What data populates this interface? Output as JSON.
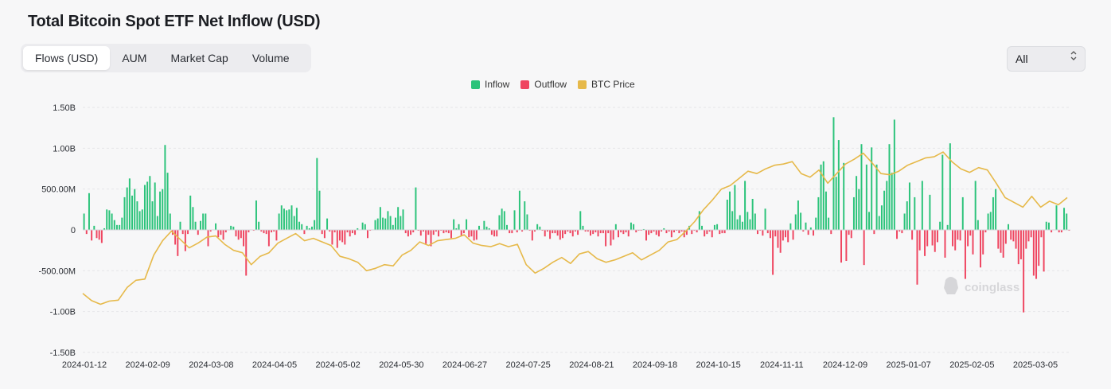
{
  "title": "Total Bitcoin Spot ETF Net Inflow (USD)",
  "tabs": [
    {
      "label": "Flows (USD)",
      "active": true
    },
    {
      "label": "AUM",
      "active": false
    },
    {
      "label": "Market Cap",
      "active": false
    },
    {
      "label": "Volume",
      "active": false
    }
  ],
  "range_select": {
    "value": "All",
    "icon": "chevron-updown-icon"
  },
  "watermark": "coinglass",
  "colors": {
    "inflow": "#2bc37a",
    "outflow": "#ef4560",
    "price": "#e6b94a",
    "grid": "#e6e6e9"
  },
  "chart_data": {
    "type": "bar",
    "title": "Total Bitcoin Spot ETF Net Inflow (USD)",
    "legend": [
      "Inflow",
      "Outflow",
      "BTC Price"
    ],
    "legend_position": "top-center",
    "grid": true,
    "y_ticks": [
      "1.50B",
      "1.00B",
      "500.00M",
      "0",
      "-500.00M",
      "-1.00B",
      "-1.50B"
    ],
    "ylim": [
      -1500000000,
      1500000000
    ],
    "x_ticks": [
      "2024-01-12",
      "2024-02-09",
      "2024-03-08",
      "2024-04-05",
      "2024-05-02",
      "2024-05-30",
      "2024-06-27",
      "2024-07-25",
      "2024-08-21",
      "2024-09-18",
      "2024-10-15",
      "2024-11-11",
      "2024-12-09",
      "2025-01-07",
      "2025-02-05",
      "2025-03-05"
    ],
    "flow_values_musd": [
      200,
      -50,
      450,
      -130,
      50,
      -100,
      -120,
      -160,
      20,
      250,
      240,
      200,
      120,
      60,
      60,
      150,
      400,
      520,
      630,
      420,
      500,
      350,
      230,
      250,
      550,
      590,
      660,
      350,
      580,
      170,
      470,
      500,
      1040,
      700,
      200,
      -60,
      -180,
      -320,
      100,
      -50,
      -260,
      -50,
      420,
      280,
      100,
      -60,
      110,
      200,
      200,
      -200,
      -20,
      0,
      80,
      -90,
      -60,
      -120,
      -30,
      0,
      50,
      40,
      -80,
      -120,
      -100,
      -200,
      -560,
      -30,
      0,
      -10,
      360,
      100,
      -20,
      -40,
      -50,
      -200,
      -30,
      -20,
      -130,
      200,
      300,
      260,
      240,
      250,
      300,
      170,
      270,
      100,
      70,
      -50,
      50,
      20,
      40,
      120,
      880,
      480,
      -50,
      -100,
      140,
      -20,
      -180,
      -30,
      -220,
      -130,
      -150,
      -180,
      -30,
      -80,
      -40,
      -60,
      20,
      0,
      90,
      70,
      -100,
      -10,
      0,
      120,
      140,
      280,
      150,
      140,
      230,
      170,
      60,
      150,
      280,
      170,
      250,
      -40,
      -80,
      -60,
      -30,
      520,
      -10,
      -70,
      -20,
      -170,
      -60,
      -200,
      -60,
      -20,
      -80,
      -10,
      -40,
      -30,
      -40,
      -100,
      130,
      20,
      70,
      -70,
      -40,
      130,
      -90,
      -80,
      -130,
      -120,
      50,
      0,
      110,
      40,
      20,
      -60,
      -80,
      -80,
      180,
      260,
      230,
      60,
      -40,
      -40,
      240,
      -30,
      480,
      -20,
      350,
      190,
      -10,
      -130,
      -20,
      70,
      40,
      -10,
      -80,
      -20,
      -110,
      -40,
      -40,
      -70,
      -120,
      -100,
      -50,
      -20,
      -40,
      -80,
      -20,
      -60,
      230,
      50,
      -20,
      -20,
      -70,
      -50,
      -30,
      -80,
      -40,
      -40,
      -200,
      -40,
      -190,
      -120,
      70,
      -90,
      -30,
      -50,
      -30,
      -80,
      90,
      70,
      -30,
      -10,
      -10,
      10,
      -130,
      -60,
      -40,
      -20,
      -60,
      -80,
      -20,
      20,
      -40,
      -20,
      -90,
      -30,
      -10,
      -40,
      -20,
      -90,
      -60,
      50,
      -50,
      -10,
      -30,
      230,
      50,
      -80,
      -50,
      -20,
      -90,
      60,
      70,
      -50,
      -40,
      -40,
      370,
      470,
      230,
      550,
      130,
      180,
      100,
      600,
      220,
      130,
      380,
      200,
      -50,
      -10,
      -70,
      260,
      -40,
      -100,
      -550,
      -80,
      -220,
      -280,
      -130,
      -90,
      -150,
      80,
      -120,
      190,
      360,
      210,
      -20,
      90,
      -60,
      30,
      -70,
      150,
      400,
      800,
      840,
      470,
      150,
      -50,
      1380,
      650,
      1100,
      -400,
      820,
      -380,
      -60,
      -100,
      400,
      660,
      500,
      1050,
      -430,
      800,
      220,
      1010,
      -50,
      800,
      170,
      300,
      480,
      600,
      1050,
      700,
      1350,
      -110,
      -20,
      -40,
      200,
      350,
      580,
      -120,
      400,
      -670,
      -250,
      600,
      -320,
      -200,
      430,
      -190,
      -270,
      -150,
      100,
      920,
      -340,
      60,
      1060,
      -200,
      -250,
      -120,
      -130,
      400,
      -600,
      -200,
      -70,
      -300,
      600,
      120,
      -460,
      -300,
      -30,
      200,
      220,
      400,
      500,
      -230,
      -280,
      -340,
      -170,
      70,
      -120,
      -140,
      -230,
      -420,
      -360,
      -1010,
      -230,
      -140,
      -90,
      -560,
      -600,
      -440,
      -90,
      -510,
      100,
      90,
      -30,
      0,
      300,
      -30,
      -30,
      270,
      200,
      -10
    ],
    "flow_values_count_note": "",
    "btc_price_usd": [
      46000,
      43000,
      41500,
      42800,
      43200,
      48500,
      51500,
      52000,
      62000,
      68000,
      72000,
      68500,
      65000,
      67000,
      69500,
      70000,
      66500,
      64000,
      63000,
      58000,
      61500,
      63000,
      67000,
      69000,
      71000,
      68000,
      69000,
      67500,
      66000,
      61500,
      60500,
      59000,
      55500,
      56500,
      58000,
      57500,
      62000,
      64000,
      67500,
      66000,
      68000,
      68500,
      69000,
      70500,
      67000,
      66000,
      65500,
      66800,
      65500,
      66500,
      58000,
      54500,
      56500,
      59000,
      61000,
      58500,
      62500,
      63500,
      60500,
      59000,
      60000,
      61500,
      63000,
      60000,
      62000,
      64000,
      67500,
      68500,
      72000,
      76000,
      81000,
      85000,
      89500,
      91000,
      94000,
      97000,
      96000,
      98000,
      99500,
      100000,
      101000,
      96000,
      94500,
      97500,
      92000,
      96000,
      100000,
      102000,
      104500,
      100500,
      96000,
      95500,
      97000,
      99500,
      101000,
      102500,
      103000,
      105000,
      101000,
      98000,
      96500,
      98500,
      97500,
      92000,
      86000,
      84000,
      82000,
      86500,
      82000,
      84500,
      83000,
      86000
    ],
    "x_unit": "date",
    "y_unit": "USD"
  }
}
